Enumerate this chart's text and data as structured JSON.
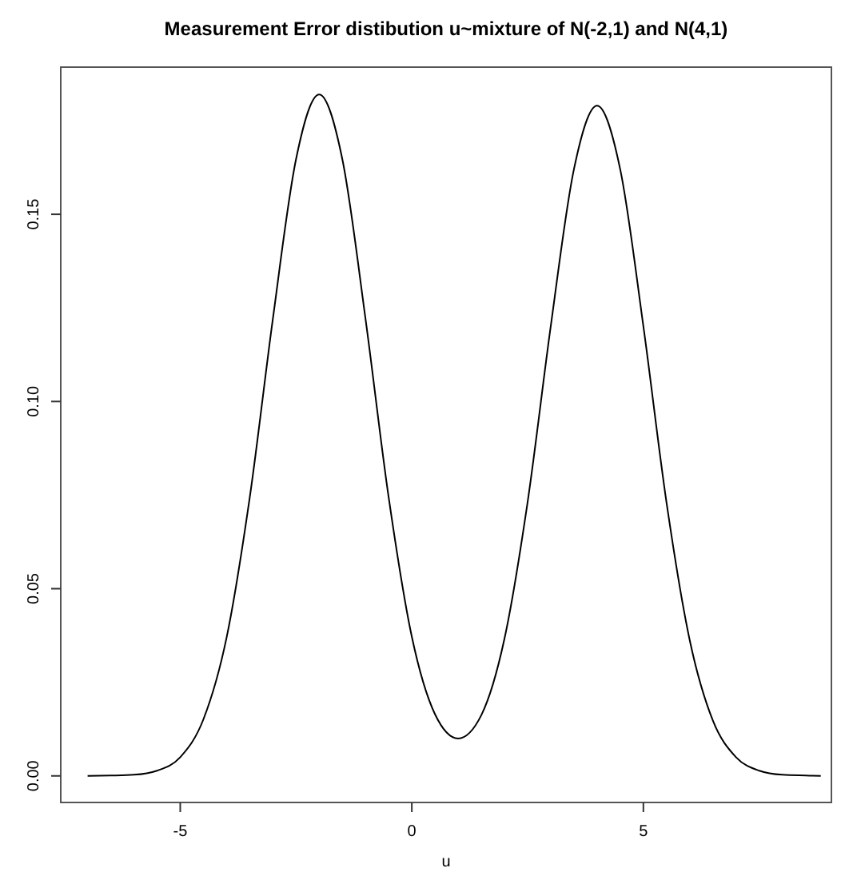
{
  "chart_data": {
    "type": "line",
    "title": "Measurement Error distibution u~mixture of N(-2,1) and N(4,1)",
    "xlabel": "u",
    "x": [
      -7,
      -6.5,
      -6,
      -5.5,
      -5,
      -4.5,
      -4,
      -3.5,
      -3,
      -2.5,
      -2,
      -1.5,
      -1,
      -0.5,
      0,
      0.5,
      1,
      1.5,
      2,
      2.5,
      3,
      3.5,
      4,
      4.5,
      5,
      5.5,
      6,
      6.5,
      7,
      7.5,
      8,
      8.5,
      8.83
    ],
    "series": [
      {
        "color": "#000000",
        "values": [
          0,
          0.0001,
          0.0003,
          0.0014,
          0.005,
          0.0151,
          0.0369,
          0.0743,
          0.1221,
          0.1647,
          0.182,
          0.1647,
          0.1221,
          0.0744,
          0.0372,
          0.0165,
          0.01,
          0.0162,
          0.0366,
          0.0731,
          0.1201,
          0.162,
          0.179,
          0.162,
          0.1201,
          0.073,
          0.0363,
          0.0148,
          0.005,
          0.0014,
          0.0003,
          0.0001,
          0
        ]
      }
    ],
    "xlim": [
      -7.58,
      9.06
    ],
    "ylim": [
      -0.0071,
      0.1893
    ],
    "xticks": [
      -5,
      0,
      5
    ],
    "yticks": [
      {
        "value": 0,
        "label": "0.00"
      },
      {
        "value": 0.05,
        "label": "0.05"
      },
      {
        "value": 0.1,
        "label": "0.10"
      },
      {
        "value": 0.15,
        "label": "0.15"
      }
    ],
    "grid": false,
    "marker": "none",
    "line_style": "solid"
  }
}
